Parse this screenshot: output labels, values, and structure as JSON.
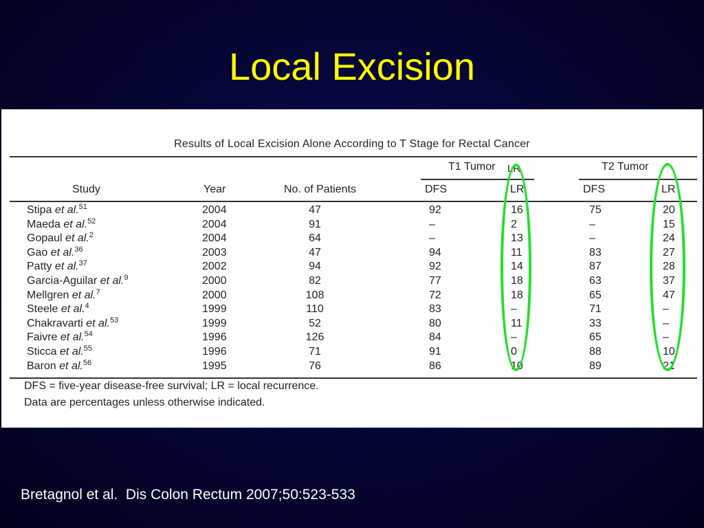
{
  "slide": {
    "title": "Local Excision",
    "citation": "Bretagnol et al.  Dis Colon Rectum 2007;50:523-533"
  },
  "table": {
    "title": "Results of Local Excision Alone According to T Stage for Rectal Cancer",
    "group_headers": {
      "t1": "T1 Tumor",
      "t2": "T2 Tumor",
      "stray_lr": "LR"
    },
    "columns": {
      "study": "Study",
      "year": "Year",
      "patients": "No. of Patients",
      "t1_dfs": "DFS",
      "t1_lr": "LR",
      "t2_dfs": "DFS",
      "t2_lr": "LR"
    },
    "rows": [
      {
        "name": "Stipa",
        "etal": "et al.",
        "ref": "51",
        "year": "2004",
        "patients": "47",
        "t1_dfs": "92",
        "t1_lr": "16",
        "t2_dfs": "75",
        "t2_lr": "20"
      },
      {
        "name": "Maeda",
        "etal": "et al.",
        "ref": "52",
        "year": "2004",
        "patients": "91",
        "t1_dfs": "–",
        "t1_lr": "2",
        "t2_dfs": "–",
        "t2_lr": "15"
      },
      {
        "name": "Gopaul",
        "etal": "et al.",
        "ref": "2",
        "year": "2004",
        "patients": "64",
        "t1_dfs": "–",
        "t1_lr": "13",
        "t2_dfs": "–",
        "t2_lr": "24"
      },
      {
        "name": "Gao",
        "etal": "et al.",
        "ref": "36",
        "year": "2003",
        "patients": "47",
        "t1_dfs": "94",
        "t1_lr": "11",
        "t2_dfs": "83",
        "t2_lr": "27"
      },
      {
        "name": "Patty",
        "etal": "et al.",
        "ref": "37",
        "year": "2002",
        "patients": "94",
        "t1_dfs": "92",
        "t1_lr": "14",
        "t2_dfs": "87",
        "t2_lr": "28"
      },
      {
        "name": "Garcia-Aguilar",
        "etal": "et al.",
        "ref": "9",
        "year": "2000",
        "patients": "82",
        "t1_dfs": "77",
        "t1_lr": "18",
        "t2_dfs": "63",
        "t2_lr": "37"
      },
      {
        "name": "Mellgren",
        "etal": "et al.",
        "ref": "7",
        "year": "2000",
        "patients": "108",
        "t1_dfs": "72",
        "t1_lr": "18",
        "t2_dfs": "65",
        "t2_lr": "47"
      },
      {
        "name": "Steele",
        "etal": "et al.",
        "ref": "4",
        "year": "1999",
        "patients": "110",
        "t1_dfs": "83",
        "t1_lr": "–",
        "t2_dfs": "71",
        "t2_lr": "–"
      },
      {
        "name": "Chakravarti",
        "etal": "et al.",
        "ref": "53",
        "year": "1999",
        "patients": "52",
        "t1_dfs": "80",
        "t1_lr": "11",
        "t2_dfs": "33",
        "t2_lr": "–"
      },
      {
        "name": "Faivre",
        "etal": "et al.",
        "ref": "54",
        "year": "1996",
        "patients": "126",
        "t1_dfs": "84",
        "t1_lr": "–",
        "t2_dfs": "65",
        "t2_lr": "–"
      },
      {
        "name": "Sticca",
        "etal": "et al.",
        "ref": "55",
        "year": "1996",
        "patients": "71",
        "t1_dfs": "91",
        "t1_lr": "0",
        "t2_dfs": "88",
        "t2_lr": "10"
      },
      {
        "name": "Baron",
        "etal": "et al.",
        "ref": "56",
        "year": "1995",
        "patients": "76",
        "t1_dfs": "86",
        "t1_lr": "10",
        "t2_dfs": "89",
        "t2_lr": "21"
      }
    ],
    "footnotes": [
      "DFS = five-year disease-free survival; LR = local recurrence.",
      "Data are percentages unless otherwise indicated."
    ]
  },
  "colors": {
    "title": "#ffff00",
    "highlight_ellipse": "#22e02a",
    "background": "#050532"
  }
}
